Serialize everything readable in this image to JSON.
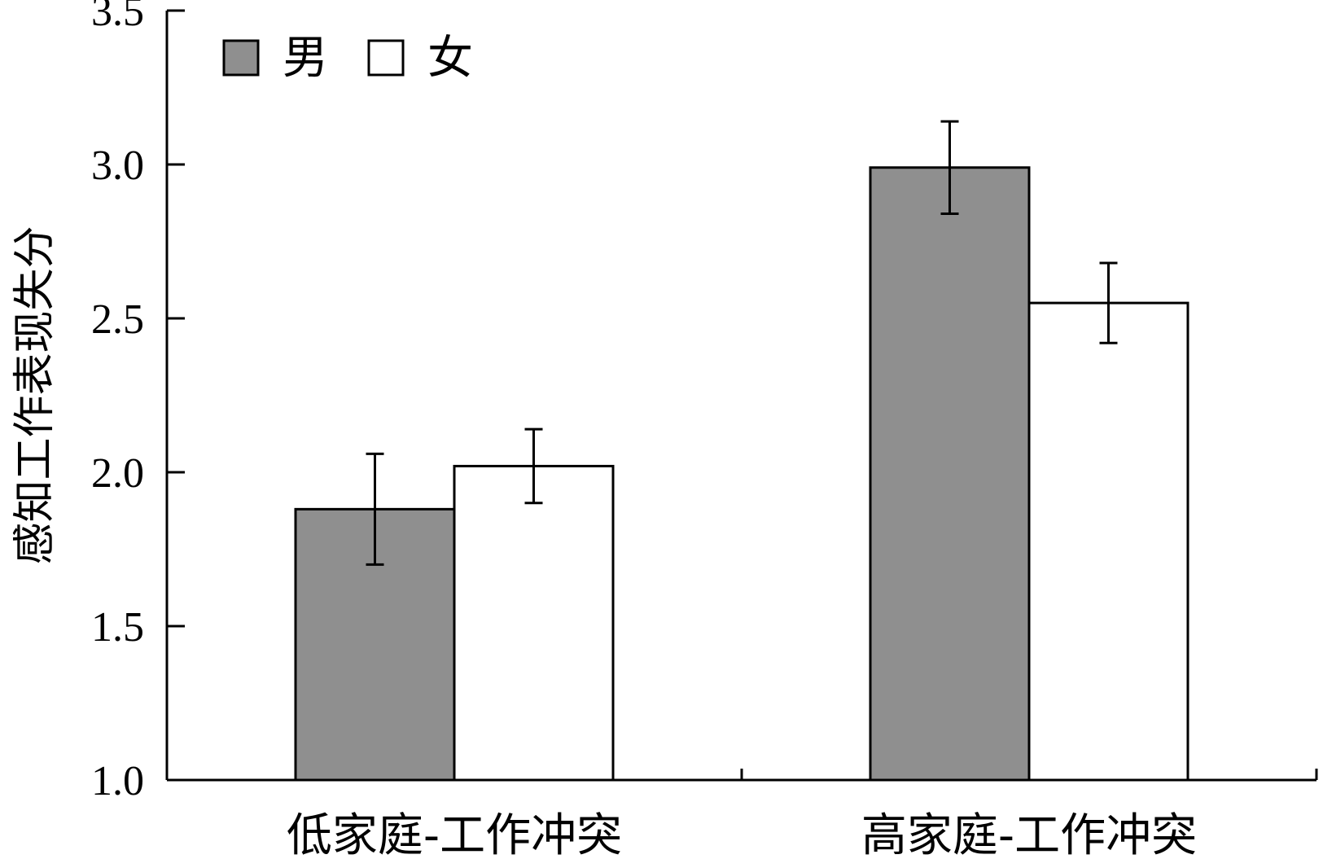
{
  "chart_data": {
    "type": "bar",
    "title": "",
    "xlabel": "",
    "ylabel": "感知工作表现失分",
    "ylim": [
      1.0,
      3.5
    ],
    "yticks": [
      "1.0",
      "1.5",
      "2.0",
      "2.5",
      "3.0",
      "3.5"
    ],
    "categories": [
      "低家庭-工作冲突",
      "高家庭-工作冲突"
    ],
    "series": [
      {
        "name": "男",
        "color": "#8f8f8f",
        "values": [
          1.88,
          2.99
        ],
        "error": [
          0.18,
          0.15
        ]
      },
      {
        "name": "女",
        "color": "#ffffff",
        "values": [
          2.02,
          2.55
        ],
        "error": [
          0.12,
          0.13
        ]
      }
    ],
    "legend_position": "top-left",
    "grid": false,
    "error_bars": true
  }
}
